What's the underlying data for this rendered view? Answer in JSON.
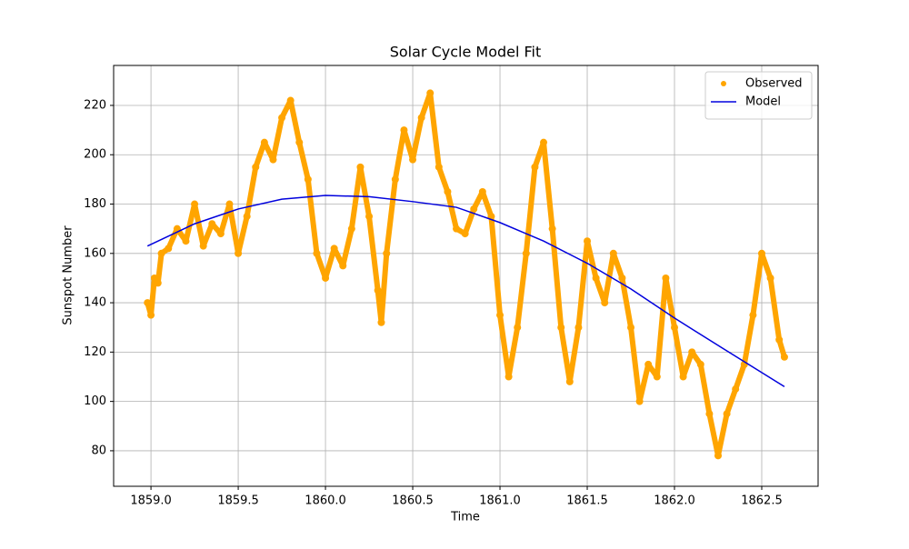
{
  "chart_data": {
    "type": "scatter-line",
    "title": "Solar Cycle Model Fit",
    "xlabel": "Time",
    "ylabel": "Sunspot Number",
    "xlim": [
      1858.786,
      1862.823
    ],
    "ylim": [
      65.6,
      236.2
    ],
    "xticks": [
      {
        "value": 1859.0,
        "label": "1859.0"
      },
      {
        "value": 1859.5,
        "label": "1859.5"
      },
      {
        "value": 1860.0,
        "label": "1860.0"
      },
      {
        "value": 1860.5,
        "label": "1860.5"
      },
      {
        "value": 1861.0,
        "label": "1861.0"
      },
      {
        "value": 1861.5,
        "label": "1861.5"
      },
      {
        "value": 1862.0,
        "label": "1862.0"
      },
      {
        "value": 1862.5,
        "label": "1862.5"
      }
    ],
    "yticks": [
      80,
      100,
      120,
      140,
      160,
      180,
      200,
      220
    ],
    "grid": true,
    "legend": "upper-right",
    "series": [
      {
        "name": "Observed",
        "mark": "point",
        "color": "orange",
        "x": [
          1858.98,
          1859.0,
          1859.02,
          1859.04,
          1859.06,
          1859.1,
          1859.15,
          1859.2,
          1859.25,
          1859.3,
          1859.35,
          1859.4,
          1859.45,
          1859.5,
          1859.55,
          1859.6,
          1859.65,
          1859.7,
          1859.75,
          1859.8,
          1859.85,
          1859.9,
          1859.95,
          1860.0,
          1860.05,
          1860.1,
          1860.15,
          1860.2,
          1860.25,
          1860.3,
          1860.32,
          1860.35,
          1860.4,
          1860.45,
          1860.5,
          1860.55,
          1860.6,
          1860.65,
          1860.7,
          1860.75,
          1860.8,
          1860.85,
          1860.9,
          1860.95,
          1861.0,
          1861.05,
          1861.1,
          1861.15,
          1861.2,
          1861.25,
          1861.3,
          1861.35,
          1861.4,
          1861.45,
          1861.5,
          1861.55,
          1861.6,
          1861.65,
          1861.7,
          1861.75,
          1861.8,
          1861.85,
          1861.9,
          1861.95,
          1862.0,
          1862.05,
          1862.1,
          1862.15,
          1862.2,
          1862.25,
          1862.3,
          1862.35,
          1862.4,
          1862.45,
          1862.5,
          1862.55,
          1862.6,
          1862.63
        ],
        "values": [
          140,
          135,
          150,
          148,
          160,
          162,
          170,
          165,
          180,
          163,
          172,
          168,
          180,
          160,
          175,
          195,
          205,
          198,
          215,
          222,
          205,
          190,
          160,
          150,
          162,
          155,
          170,
          195,
          175,
          145,
          132,
          160,
          190,
          210,
          198,
          215,
          225,
          195,
          185,
          170,
          168,
          178,
          185,
          175,
          135,
          110,
          130,
          160,
          195,
          205,
          170,
          130,
          108,
          130,
          165,
          150,
          140,
          160,
          150,
          130,
          100,
          115,
          110,
          150,
          130,
          110,
          120,
          115,
          95,
          78,
          95,
          105,
          115,
          135,
          160,
          150,
          125,
          118
        ]
      },
      {
        "name": "Model",
        "mark": "line",
        "color": "#0000dd",
        "x": [
          1858.98,
          1859.25,
          1859.5,
          1859.75,
          1860.0,
          1860.25,
          1860.5,
          1860.75,
          1861.0,
          1861.25,
          1861.5,
          1861.75,
          1862.0,
          1862.25,
          1862.5,
          1862.63
        ],
        "values": [
          163,
          172,
          178,
          182,
          183.5,
          183,
          181,
          178.7,
          172.5,
          165,
          156,
          145.6,
          133.8,
          122.7,
          111.7,
          106
        ]
      }
    ]
  }
}
